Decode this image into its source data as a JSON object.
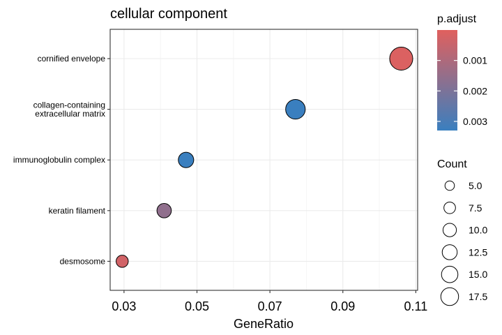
{
  "chart_data": {
    "type": "scatter",
    "title": "cellular component",
    "xlabel": "GeneRatio",
    "ylabel": "",
    "xlim": [
      0.0262,
      0.1105
    ],
    "x_ticks": [
      "0.03",
      "0.05",
      "0.07",
      "0.09",
      "0.11"
    ],
    "x_tick_values": [
      0.03,
      0.05,
      0.07,
      0.09,
      0.11
    ],
    "grid": true,
    "categories": [
      {
        "lines": [
          "cornified envelope"
        ]
      },
      {
        "lines": [
          "collagen-containing",
          "extracellular matrix"
        ]
      },
      {
        "lines": [
          "immunoglobulin complex"
        ]
      },
      {
        "lines": [
          "keratin filament"
        ]
      },
      {
        "lines": [
          "desmosome"
        ]
      }
    ],
    "points": [
      {
        "category": "cornified envelope",
        "x": 0.106,
        "count": 18,
        "p_adjust": 0.0001
      },
      {
        "category": "collagen-containing extracellular matrix",
        "x": 0.077,
        "count": 13,
        "p_adjust": 0.0033
      },
      {
        "category": "immunoglobulin complex",
        "x": 0.047,
        "count": 8,
        "p_adjust": 0.0033
      },
      {
        "category": "keratin filament",
        "x": 0.041,
        "count": 7,
        "p_adjust": 0.0016
      },
      {
        "category": "desmosome",
        "x": 0.0295,
        "count": 5,
        "p_adjust": 0.0003
      }
    ],
    "color_legend": {
      "title": "p.adjust",
      "labels": [
        "0.001",
        "0.002",
        "0.003"
      ],
      "values": [
        0.001,
        0.002,
        0.003
      ],
      "range": [
        0.0,
        0.0033
      ],
      "low_color": "#e0605e",
      "high_color": "#3a7fbf"
    },
    "size_legend": {
      "title": "Count",
      "labels": [
        "5.0",
        "7.5",
        "10.0",
        "12.5",
        "15.0",
        "17.5"
      ],
      "values": [
        5,
        7.5,
        10,
        12.5,
        15,
        17.5
      ]
    },
    "legend_position": "right"
  }
}
